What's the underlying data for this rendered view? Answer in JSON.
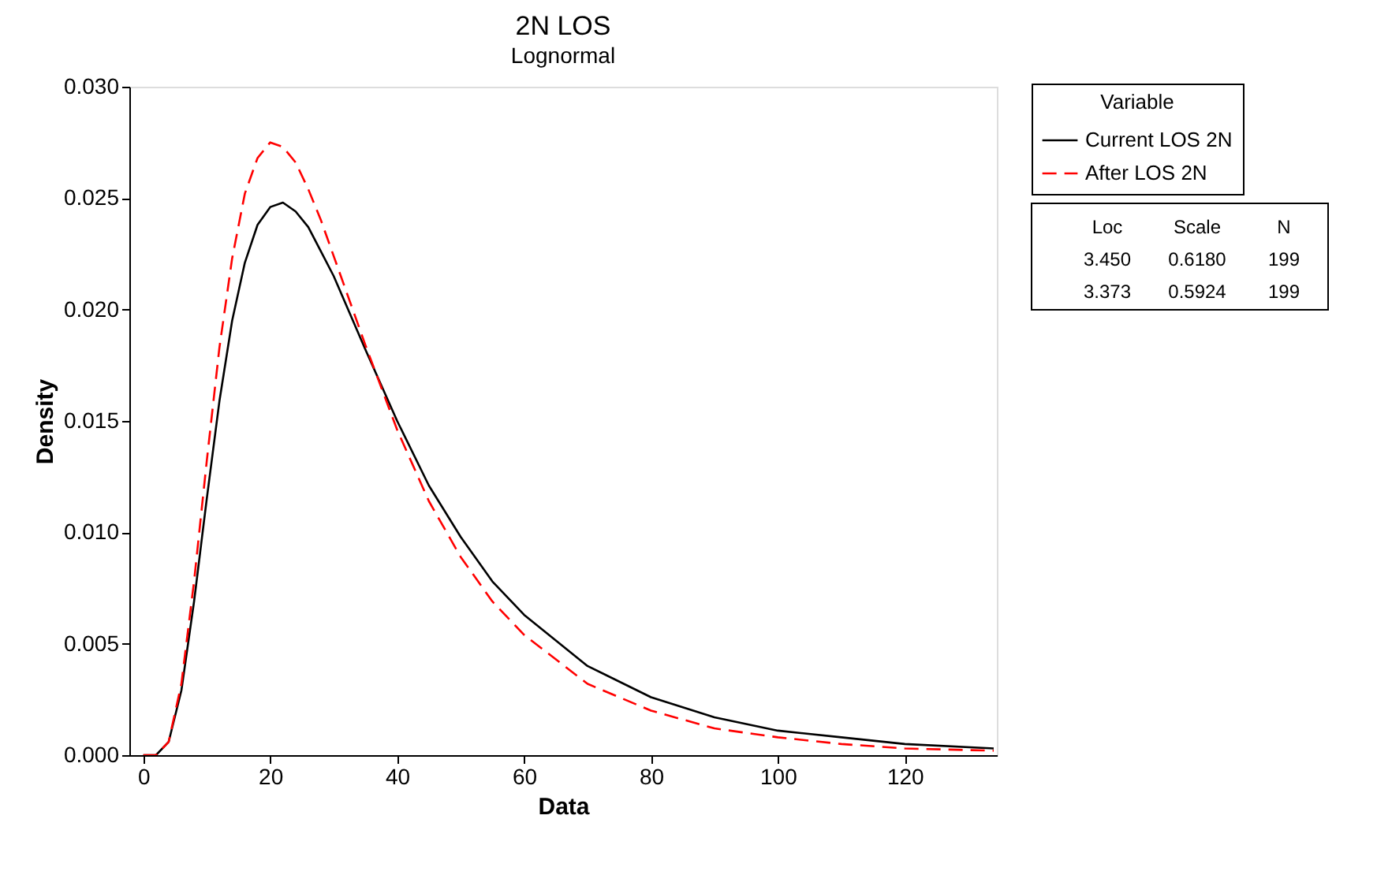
{
  "chart_data": {
    "type": "line",
    "title": "2N  LOS",
    "subtitle": "Lognormal",
    "xlabel": "Data",
    "ylabel": "Density",
    "legend_title": "Variable",
    "legend": "top right",
    "grid": false,
    "marker": "none",
    "x": [
      0,
      2,
      4,
      6,
      8,
      10,
      12,
      14,
      16,
      18,
      20,
      22,
      24,
      26,
      28,
      30,
      35,
      40,
      45,
      50,
      55,
      60,
      70,
      80,
      90,
      100,
      110,
      120,
      134
    ],
    "series": [
      {
        "name": "Current LOS 2N",
        "color": "#000000",
        "line_style": "solid",
        "values": [
          0,
          0,
          0.0006,
          0.0029,
          0.0069,
          0.0115,
          0.0159,
          0.0195,
          0.0221,
          0.0238,
          0.0246,
          0.0248,
          0.0244,
          0.0237,
          0.0226,
          0.0215,
          0.0182,
          0.015,
          0.0121,
          0.0098,
          0.0078,
          0.0063,
          0.004,
          0.0026,
          0.0017,
          0.0011,
          0.0008,
          0.0005,
          0.0003
        ]
      },
      {
        "name": "After LOS 2N",
        "color": "#ff0000",
        "line_style": "dashed",
        "values": [
          0,
          0,
          0.0006,
          0.0032,
          0.0078,
          0.0132,
          0.0183,
          0.0223,
          0.0252,
          0.0268,
          0.0275,
          0.0273,
          0.0266,
          0.0254,
          0.024,
          0.0224,
          0.0184,
          0.0146,
          0.0114,
          0.0089,
          0.0069,
          0.0054,
          0.0032,
          0.002,
          0.0012,
          0.0008,
          0.0005,
          0.0003,
          0.0002
        ]
      }
    ],
    "xlim": [
      -2.2,
      134.5
    ],
    "xticks": [
      0,
      20,
      40,
      60,
      80,
      100,
      120
    ],
    "ylim": [
      0,
      0.03
    ],
    "yticks": [
      {
        "value": 0,
        "label": "0.000"
      },
      {
        "value": 0.005,
        "label": "0.005"
      },
      {
        "value": 0.01,
        "label": "0.010"
      },
      {
        "value": 0.015,
        "label": "0.015"
      },
      {
        "value": 0.02,
        "label": "0.020"
      },
      {
        "value": 0.025,
        "label": "0.025"
      },
      {
        "value": 0.03,
        "label": "0.030"
      }
    ],
    "annotations": [
      "Loc",
      "Scale",
      "N",
      "3.450",
      "0.6180",
      "199",
      "3.373",
      "0.5924",
      "199"
    ]
  }
}
